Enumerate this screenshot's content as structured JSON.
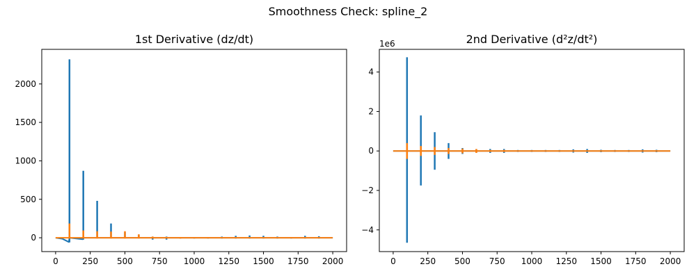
{
  "suptitle": "Smoothness Check: spline_2",
  "colors": {
    "series_1": "#1f77b4",
    "series_2": "#ff7f0e"
  },
  "chart_data": [
    {
      "type": "line",
      "title": "1st Derivative (dz/dt)",
      "xlabel": "",
      "ylabel": "",
      "xlim": [
        -100,
        2100
      ],
      "ylim": [
        -180,
        2450
      ],
      "xticks": [
        0,
        250,
        500,
        750,
        1000,
        1250,
        1500,
        1750,
        2000
      ],
      "yticks": [
        0,
        500,
        1000,
        1500,
        2000
      ],
      "offset_text": "",
      "grid": false,
      "legend": "none",
      "series": [
        {
          "color": "#1f77b4",
          "baseline": [
            [
              0,
              0
            ],
            [
              50,
              -15
            ],
            [
              95,
              -55
            ],
            [
              100,
              0
            ],
            [
              195,
              -20
            ],
            [
              200,
              0
            ],
            [
              2000,
              0
            ]
          ],
          "spikes": [
            [
              100,
              -60,
              2320
            ],
            [
              200,
              -25,
              870
            ],
            [
              300,
              -5,
              480
            ],
            [
              400,
              -5,
              185
            ],
            [
              500,
              -5,
              70
            ],
            [
              600,
              -5,
              35
            ],
            [
              700,
              -25,
              15
            ],
            [
              800,
              -25,
              15
            ],
            [
              900,
              -10,
              10
            ],
            [
              1000,
              -10,
              10
            ],
            [
              1100,
              -10,
              10
            ],
            [
              1200,
              -10,
              15
            ],
            [
              1300,
              -10,
              25
            ],
            [
              1400,
              -10,
              30
            ],
            [
              1500,
              -10,
              25
            ],
            [
              1600,
              -10,
              15
            ],
            [
              1700,
              -10,
              10
            ],
            [
              1800,
              -10,
              25
            ],
            [
              1900,
              -10,
              20
            ]
          ]
        },
        {
          "color": "#ff7f0e",
          "baseline": [
            [
              0,
              0
            ],
            [
              2000,
              0
            ]
          ],
          "spikes": [
            [
              100,
              -10,
              185
            ],
            [
              200,
              -10,
              95
            ],
            [
              300,
              -10,
              85
            ],
            [
              400,
              -10,
              80
            ],
            [
              500,
              -10,
              85
            ],
            [
              600,
              -10,
              45
            ],
            [
              700,
              -10,
              15
            ],
            [
              800,
              -10,
              10
            ],
            [
              900,
              -10,
              10
            ],
            [
              1000,
              -5,
              8
            ],
            [
              1100,
              -5,
              8
            ],
            [
              1200,
              -5,
              8
            ],
            [
              1300,
              -5,
              8
            ],
            [
              1400,
              -5,
              8
            ],
            [
              1500,
              -5,
              8
            ],
            [
              1600,
              -5,
              8
            ],
            [
              1700,
              -5,
              8
            ],
            [
              1800,
              -5,
              8
            ],
            [
              1900,
              -5,
              8
            ]
          ]
        }
      ]
    },
    {
      "type": "line",
      "title": "2nd Derivative (d²z/dt²)",
      "xlabel": "",
      "ylabel": "",
      "offset_text": "1e6",
      "xlim": [
        -100,
        2100
      ],
      "ylim": [
        -5.1,
        5.15
      ],
      "xticks": [
        0,
        250,
        500,
        750,
        1000,
        1250,
        1500,
        1750,
        2000
      ],
      "yticks": [
        -4,
        -2,
        0,
        2,
        4
      ],
      "grid": false,
      "legend": "none",
      "series": [
        {
          "color": "#1f77b4",
          "baseline": [
            [
              0,
              0
            ],
            [
              2000,
              0
            ]
          ],
          "spikes": [
            [
              100,
              -4.65,
              4.75
            ],
            [
              200,
              -1.75,
              1.8
            ],
            [
              300,
              -0.95,
              0.95
            ],
            [
              400,
              -0.4,
              0.4
            ],
            [
              500,
              -0.15,
              0.15
            ],
            [
              600,
              -0.08,
              0.08
            ],
            [
              700,
              -0.1,
              0.1
            ],
            [
              800,
              -0.1,
              0.1
            ],
            [
              900,
              -0.05,
              0.05
            ],
            [
              1000,
              -0.05,
              0.05
            ],
            [
              1100,
              -0.05,
              0.05
            ],
            [
              1200,
              -0.05,
              0.05
            ],
            [
              1300,
              -0.08,
              0.08
            ],
            [
              1400,
              -0.1,
              0.1
            ],
            [
              1500,
              -0.06,
              0.06
            ],
            [
              1600,
              -0.05,
              0.05
            ],
            [
              1700,
              -0.05,
              0.05
            ],
            [
              1800,
              -0.08,
              0.08
            ],
            [
              1900,
              -0.06,
              0.06
            ]
          ]
        },
        {
          "color": "#ff7f0e",
          "baseline": [
            [
              0,
              0
            ],
            [
              2000,
              0
            ]
          ],
          "spikes": [
            [
              100,
              -0.4,
              0.4
            ],
            [
              200,
              -0.25,
              0.25
            ],
            [
              300,
              -0.2,
              0.2
            ],
            [
              400,
              -0.15,
              0.15
            ],
            [
              500,
              -0.12,
              0.12
            ],
            [
              600,
              -0.1,
              0.1
            ],
            [
              700,
              -0.05,
              0.05
            ],
            [
              800,
              -0.05,
              0.05
            ],
            [
              900,
              -0.03,
              0.03
            ],
            [
              1000,
              -0.03,
              0.03
            ],
            [
              1100,
              -0.03,
              0.03
            ],
            [
              1200,
              -0.03,
              0.03
            ],
            [
              1300,
              -0.03,
              0.03
            ],
            [
              1400,
              -0.03,
              0.03
            ],
            [
              1500,
              -0.03,
              0.03
            ],
            [
              1600,
              -0.03,
              0.03
            ],
            [
              1700,
              -0.03,
              0.03
            ],
            [
              1800,
              -0.03,
              0.03
            ],
            [
              1900,
              -0.03,
              0.03
            ]
          ]
        }
      ]
    }
  ]
}
